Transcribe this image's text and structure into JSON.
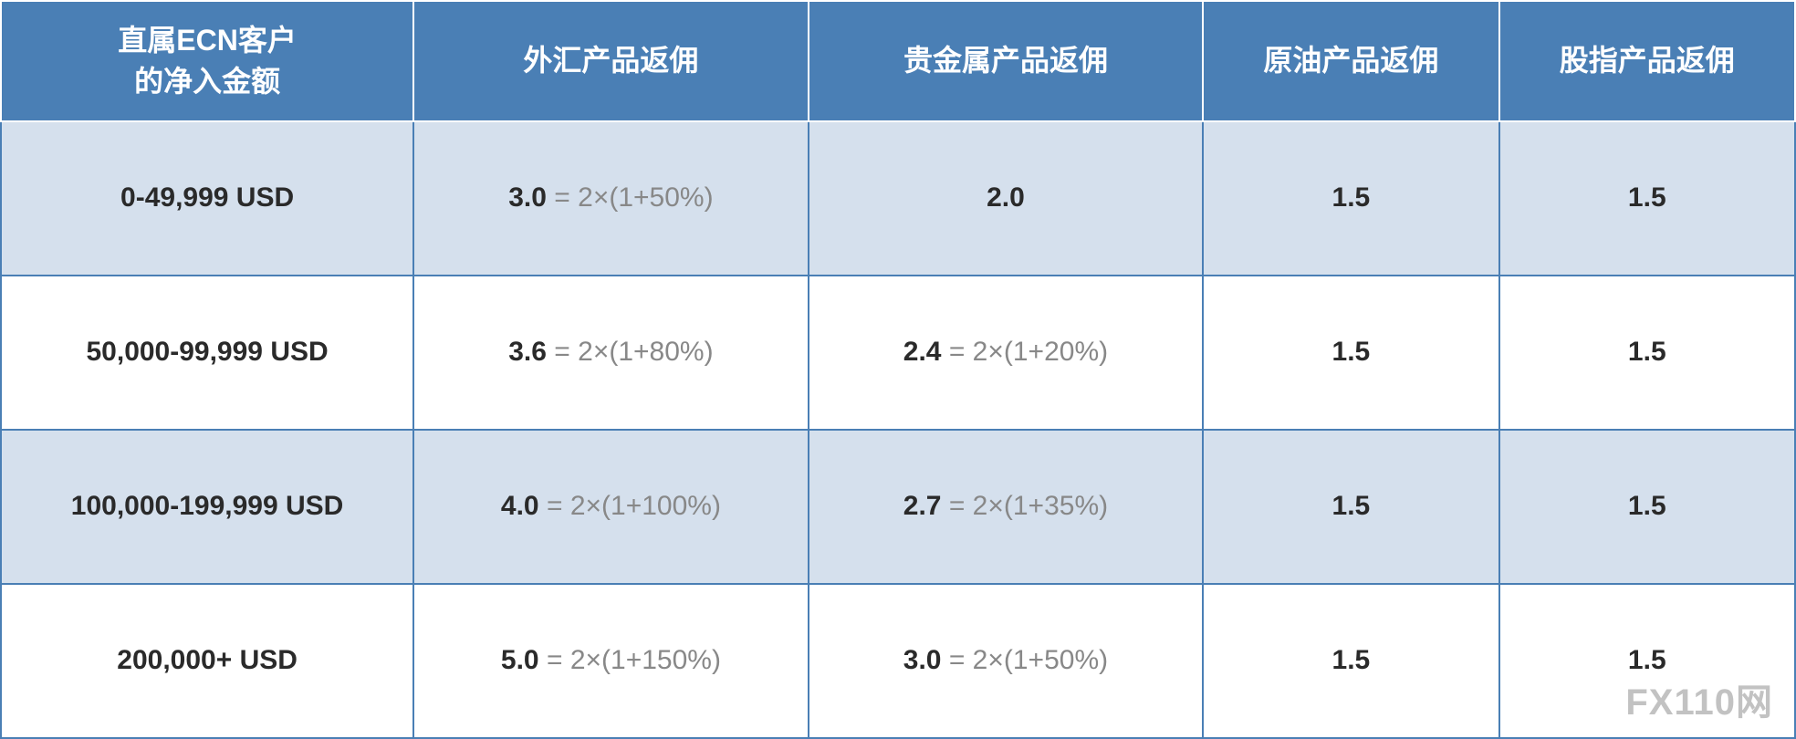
{
  "table": {
    "type": "table",
    "columns": [
      {
        "label_line1": "直属ECN客户",
        "label_line2": "的净入金额",
        "width": "23%"
      },
      {
        "label": "外汇产品返佣",
        "width": "22%"
      },
      {
        "label": "贵金属产品返佣",
        "width": "22%"
      },
      {
        "label": "原油产品返佣",
        "width": "16.5%"
      },
      {
        "label": "股指产品返佣",
        "width": "16.5%"
      }
    ],
    "rows": [
      {
        "alt": true,
        "tier": "0-49,999 USD",
        "forex": {
          "value": "3.0",
          "formula": " = 2×(1+50%)"
        },
        "metals": {
          "value": "2.0",
          "formula": ""
        },
        "oil": {
          "value": "1.5",
          "formula": ""
        },
        "index": {
          "value": "1.5",
          "formula": ""
        }
      },
      {
        "alt": false,
        "tier": "50,000-99,999 USD",
        "forex": {
          "value": "3.6",
          "formula": " = 2×(1+80%)"
        },
        "metals": {
          "value": "2.4",
          "formula": " = 2×(1+20%)"
        },
        "oil": {
          "value": "1.5",
          "formula": ""
        },
        "index": {
          "value": "1.5",
          "formula": ""
        }
      },
      {
        "alt": true,
        "tier": "100,000-199,999  USD",
        "forex": {
          "value": "4.0",
          "formula": " = 2×(1+100%)"
        },
        "metals": {
          "value": "2.7",
          "formula": " = 2×(1+35%)"
        },
        "oil": {
          "value": "1.5",
          "formula": ""
        },
        "index": {
          "value": "1.5",
          "formula": ""
        }
      },
      {
        "alt": false,
        "tier": "200,000+ USD",
        "forex": {
          "value": "5.0",
          "formula": " = 2×(1+150%)"
        },
        "metals": {
          "value": "3.0",
          "formula": " = 2×(1+50%)"
        },
        "oil": {
          "value": "1.5",
          "formula": ""
        },
        "index": {
          "value": "1.5",
          "formula": ""
        }
      }
    ],
    "header_bg_color": "#4a7fb5",
    "header_text_color": "#ffffff",
    "alt_row_bg_color": "#d5e0ed",
    "normal_row_bg_color": "#ffffff",
    "border_color": "#4a7fb5",
    "bold_text_color": "#2a2a2a",
    "formula_text_color": "#888888",
    "header_fontsize": 32,
    "cell_fontsize": 30
  },
  "watermark": "FX110网"
}
